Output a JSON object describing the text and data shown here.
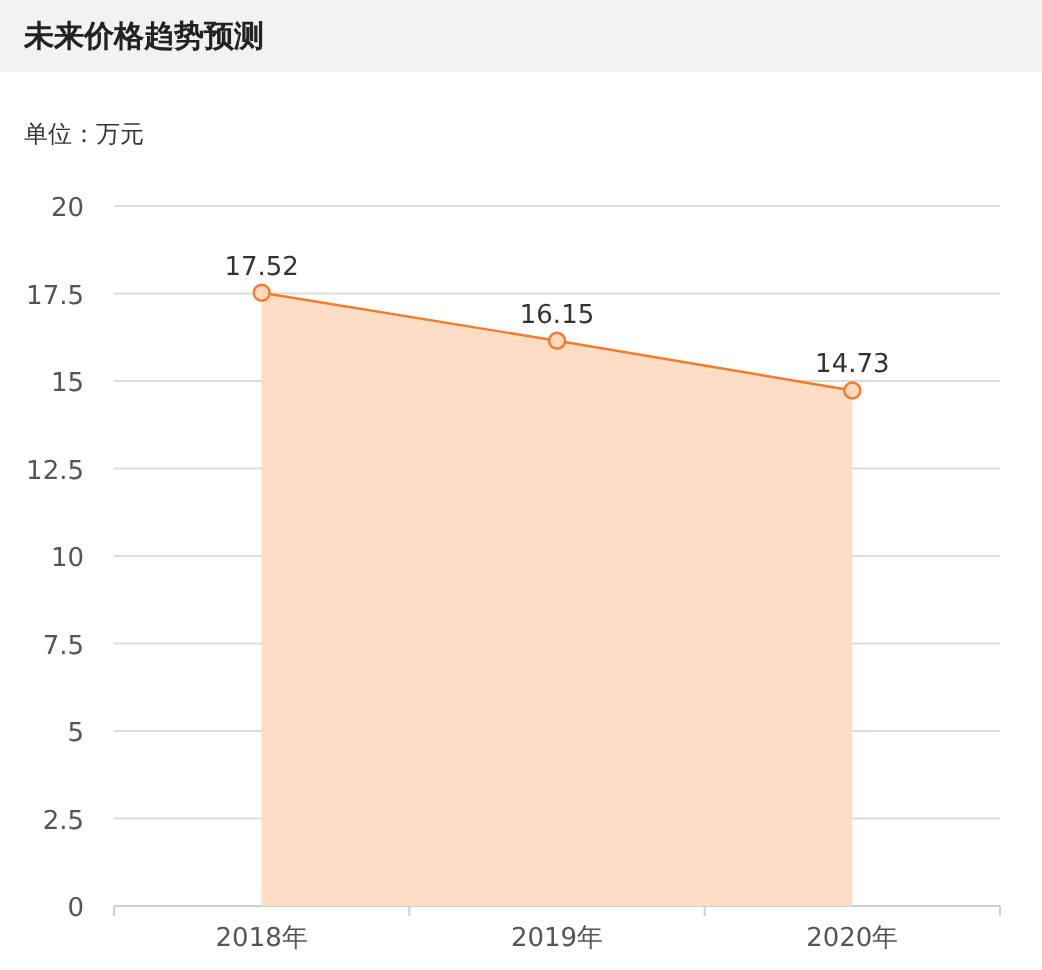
{
  "chart_data": {
    "type": "area",
    "title": "未来价格趋势预测",
    "subtitle": "单位：万元",
    "categories": [
      "2018年",
      "2019年",
      "2020年"
    ],
    "series": [
      {
        "color": "#f47a2c",
        "values": [
          17.52,
          16.15,
          14.73
        ]
      }
    ],
    "ylim": [
      0,
      20
    ],
    "yticks": [
      0,
      2.5,
      5,
      7.5,
      10,
      12.5,
      15,
      17.5,
      20
    ],
    "grid": "y",
    "marker": "circle",
    "data_labels": true
  }
}
